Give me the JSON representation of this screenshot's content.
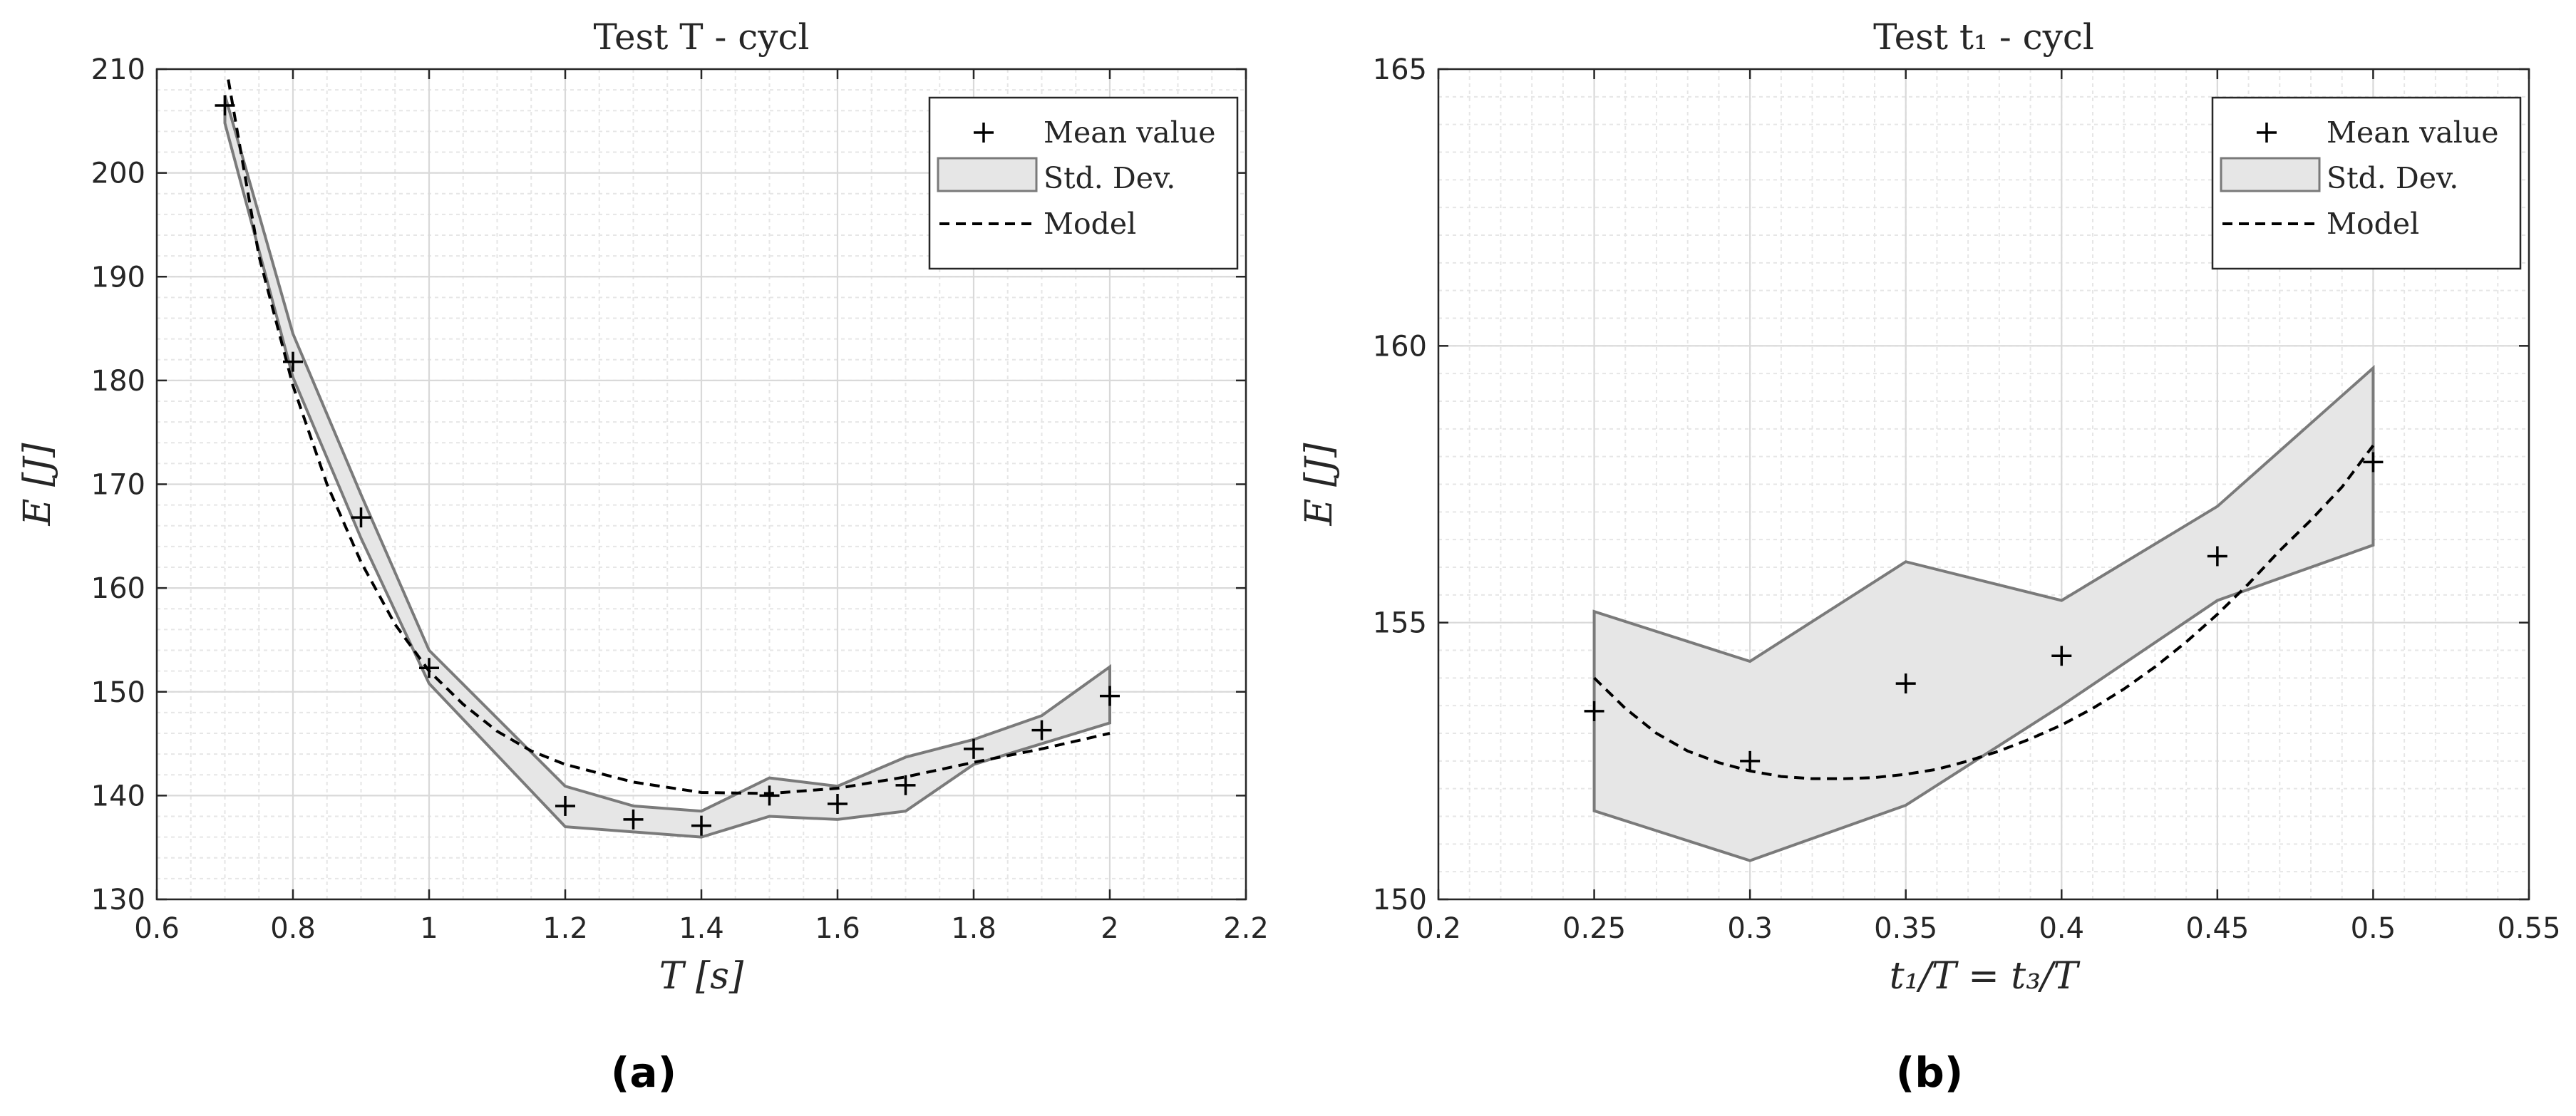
{
  "panel_labels": [
    "(a)",
    "(b)"
  ],
  "chart_data": [
    {
      "type": "line",
      "title": "Test T - cycl",
      "xlabel": "T [s]",
      "ylabel": "E [J]",
      "xlim": [
        0.6,
        2.2
      ],
      "ylim": [
        130,
        210
      ],
      "x_ticks": [
        "0.6",
        "0.8",
        "1",
        "1.2",
        "1.4",
        "1.6",
        "1.8",
        "2",
        "2.2"
      ],
      "y_ticks": [
        "130",
        "140",
        "150",
        "160",
        "170",
        "180",
        "190",
        "200",
        "210"
      ],
      "grid": true,
      "legend_position": "top-right",
      "legend": [
        "Mean value",
        "Std. Dev.",
        "Model"
      ],
      "x": [
        0.7,
        0.8,
        0.9,
        1.0,
        1.2,
        1.3,
        1.4,
        1.5,
        1.6,
        1.7,
        1.8,
        1.9,
        2.0
      ],
      "series": [
        {
          "name": "Mean value",
          "values": [
            206.5,
            181.8,
            166.8,
            152.3,
            139.0,
            137.7,
            137.1,
            140.0,
            139.2,
            141.0,
            144.5,
            146.3,
            149.6
          ]
        },
        {
          "name": "Std. Dev.",
          "upper": [
            207.5,
            184.5,
            169.0,
            154.0,
            140.9,
            139.0,
            138.5,
            141.7,
            140.9,
            143.7,
            145.4,
            147.7,
            152.4
          ],
          "lower": [
            204.8,
            180.3,
            164.8,
            150.8,
            137.0,
            136.5,
            136.0,
            138.0,
            137.7,
            138.5,
            143.0,
            145.0,
            147.0
          ]
        },
        {
          "name": "Model",
          "x": [
            0.705,
            0.75,
            0.8,
            0.85,
            0.9,
            0.95,
            1.0,
            1.05,
            1.1,
            1.15,
            1.2,
            1.3,
            1.4,
            1.5,
            1.6,
            1.7,
            1.8,
            1.9,
            2.0
          ],
          "values": [
            209.0,
            192.0,
            179.5,
            170.0,
            162.5,
            156.5,
            152.0,
            148.8,
            146.2,
            144.3,
            143.0,
            141.3,
            140.3,
            140.2,
            140.7,
            141.8,
            143.2,
            144.5,
            146.0
          ]
        }
      ]
    },
    {
      "type": "line",
      "title": "Test t₁ - cycl",
      "xlabel": "t₁/T = t₃/T",
      "ylabel": "E [J]",
      "xlim": [
        0.2,
        0.55
      ],
      "ylim": [
        150,
        165
      ],
      "x_ticks": [
        "0.2",
        "0.25",
        "0.3",
        "0.35",
        "0.4",
        "0.45",
        "0.5",
        "0.55"
      ],
      "y_ticks": [
        "150",
        "155",
        "160",
        "165"
      ],
      "grid": true,
      "legend_position": "top-right",
      "legend": [
        "Mean value",
        "Std. Dev.",
        "Model"
      ],
      "x": [
        0.25,
        0.3,
        0.35,
        0.4,
        0.45,
        0.5
      ],
      "series": [
        {
          "name": "Mean value",
          "values": [
            153.4,
            152.5,
            153.9,
            154.4,
            156.2,
            157.9
          ]
        },
        {
          "name": "Std. Dev.",
          "upper": [
            155.2,
            154.3,
            156.1,
            155.4,
            157.1,
            159.6
          ],
          "lower": [
            151.6,
            150.7,
            151.7,
            153.5,
            155.4,
            156.4
          ]
        },
        {
          "name": "Model",
          "x": [
            0.25,
            0.26,
            0.27,
            0.28,
            0.29,
            0.3,
            0.31,
            0.32,
            0.33,
            0.34,
            0.35,
            0.36,
            0.37,
            0.38,
            0.39,
            0.4,
            0.41,
            0.42,
            0.43,
            0.44,
            0.45,
            0.46,
            0.47,
            0.48,
            0.49,
            0.5
          ],
          "values": [
            154.0,
            153.45,
            153.0,
            152.68,
            152.47,
            152.32,
            152.22,
            152.18,
            152.18,
            152.2,
            152.26,
            152.35,
            152.5,
            152.68,
            152.9,
            153.15,
            153.45,
            153.8,
            154.2,
            154.65,
            155.15,
            155.7,
            156.3,
            156.85,
            157.45,
            158.2
          ]
        }
      ]
    }
  ]
}
